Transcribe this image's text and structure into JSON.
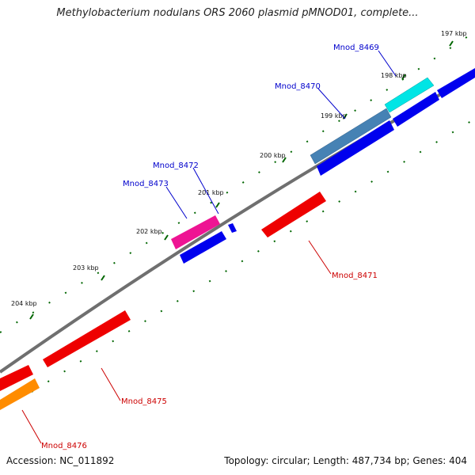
{
  "title": "Methylobacterium nodulans ORS 2060 plasmid pMNOD01, complete...",
  "ticks": [
    "197 kbp",
    "198 kbp",
    "199 kbp",
    "200 kbp",
    "201 kbp",
    "202 kbp",
    "203 kbp",
    "204 kbp"
  ],
  "genes": [
    {
      "name": "Mnod_8469",
      "color": "#00e5e5",
      "strand": "+"
    },
    {
      "name": "Mnod_8470",
      "color": "#4682b4",
      "strand": "+"
    },
    {
      "name": "Mnod_8472",
      "color": "#0000ee",
      "strand": "+"
    },
    {
      "name": "Mnod_8473",
      "color": "#ee1493",
      "strand": "+"
    },
    {
      "name": "Mnod_8471",
      "color": "#ee0000",
      "strand": "-"
    },
    {
      "name": "Mnod_8475",
      "color": "#ee0000",
      "strand": "-"
    },
    {
      "name": "Mnod_8476",
      "color": "#ff8c00",
      "strand": "-"
    }
  ],
  "colors": {
    "plus_label": "#0000cc",
    "minus_label": "#cc0000",
    "backbone": "#7f7f7f",
    "tick": "#006600"
  },
  "footer": {
    "accession": "Accession: NC_011892",
    "topology": "Topology: circular; Length: 487,734 bp; Genes: 404"
  }
}
